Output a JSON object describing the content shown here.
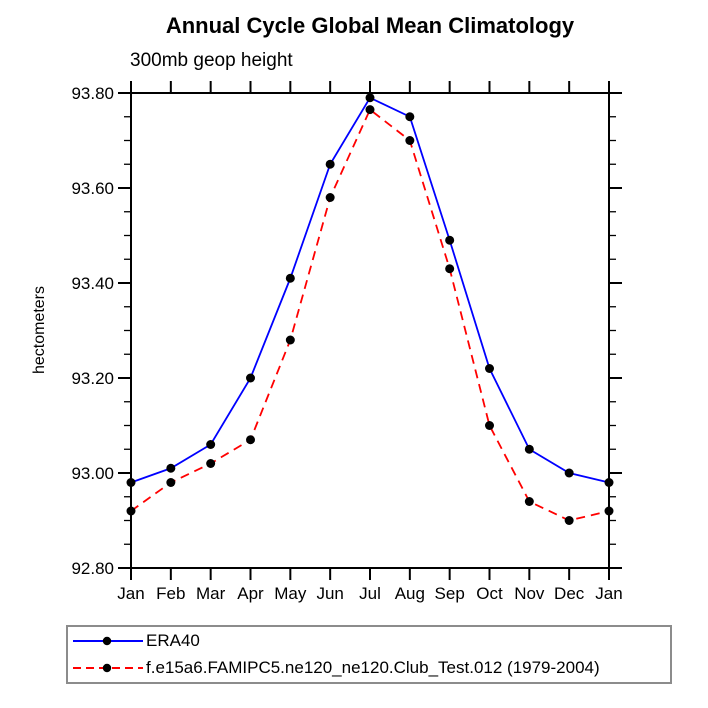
{
  "chart_data": {
    "type": "line",
    "title": "Annual Cycle Global Mean Climatology",
    "subtitle": "300mb geop height",
    "ylabel": "hectometers",
    "xlabel": "",
    "categories": [
      "Jan",
      "Feb",
      "Mar",
      "Apr",
      "May",
      "Jun",
      "Jul",
      "Aug",
      "Sep",
      "Oct",
      "Nov",
      "Dec",
      "Jan"
    ],
    "ylim": [
      92.8,
      93.8
    ],
    "ytick_values": [
      92.8,
      93.0,
      93.2,
      93.4,
      93.6,
      93.8
    ],
    "ytick_labels": [
      "92.80",
      "93.00",
      "93.20",
      "93.40",
      "93.60",
      "93.80"
    ],
    "ytick_minor_step": 0.05,
    "grid": false,
    "legend_position": "bottom-left",
    "frame_color": "#000000",
    "series": [
      {
        "name": "ERA40",
        "color": "#0000ff",
        "style": "solid",
        "marker": "circle",
        "marker_color": "#000000",
        "values": [
          92.98,
          93.01,
          93.06,
          93.2,
          93.41,
          93.65,
          93.79,
          93.75,
          93.49,
          93.22,
          93.05,
          93.0,
          92.98
        ]
      },
      {
        "name": "f.e15a6.FAMIPC5.ne120_ne120.Club_Test.012 (1979-2004)",
        "color": "#ff0000",
        "style": "dashed",
        "marker": "circle",
        "marker_color": "#000000",
        "values": [
          92.92,
          92.98,
          93.02,
          93.07,
          93.28,
          93.58,
          93.765,
          93.7,
          93.43,
          93.1,
          92.94,
          92.9,
          92.92
        ]
      }
    ]
  }
}
